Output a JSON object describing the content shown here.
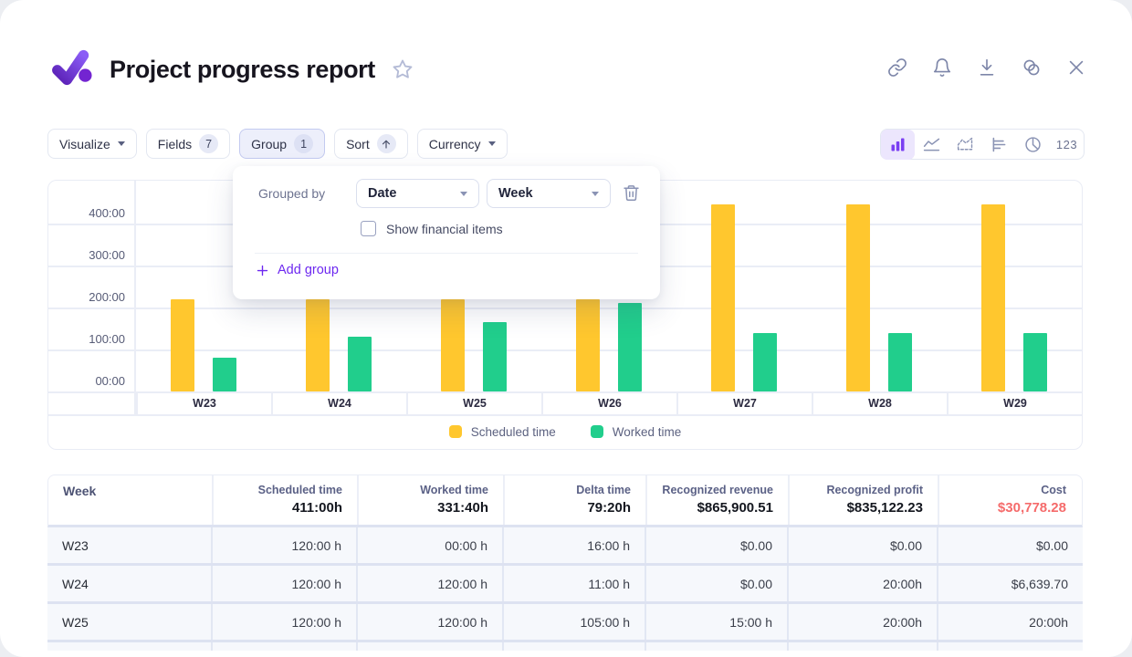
{
  "header": {
    "title": "Project progress report",
    "logo": "checkmark-logo",
    "favorite_icon": "star-icon",
    "action_icons": [
      "link-icon",
      "notifications-bell-icon",
      "download-icon",
      "merge-circles-icon",
      "close-icon"
    ]
  },
  "toolbar": {
    "visualize": {
      "label": "Visualize"
    },
    "fields": {
      "label": "Fields",
      "badge": "7"
    },
    "group": {
      "label": "Group",
      "badge": "1",
      "active": true
    },
    "sort": {
      "label": "Sort",
      "icon": "arrow-up"
    },
    "currency": {
      "label": "Currency"
    },
    "view_switcher": {
      "options": [
        "bar-chart",
        "line-chart",
        "area-chart",
        "horizontal-bar-chart",
        "pie-chart",
        "numbers"
      ],
      "active": "bar-chart",
      "numbers_label": "123"
    }
  },
  "group_panel": {
    "grouped_by_label": "Grouped by",
    "date_field": {
      "value": "Date"
    },
    "bucket_field": {
      "value": "Week"
    },
    "delete_icon": "trash-icon",
    "checkbox": {
      "label": "Show financial items",
      "checked": false
    },
    "add_group_label": "Add group"
  },
  "chart_data": {
    "type": "bar",
    "categories": [
      "W23",
      "W24",
      "W25",
      "W26",
      "W27",
      "W28",
      "W29"
    ],
    "series": [
      {
        "name": "Scheduled time",
        "color": "#FFC72E",
        "values": [
          220,
          220,
          220,
          220,
          445,
          445,
          445
        ]
      },
      {
        "name": "Worked time",
        "color": "#21CE8C",
        "values": [
          80,
          130,
          165,
          210,
          140,
          140,
          140
        ]
      }
    ],
    "y_ticks": [
      {
        "label": "00:00",
        "value": 0
      },
      {
        "label": "100:00",
        "value": 100
      },
      {
        "label": "200:00",
        "value": 200
      },
      {
        "label": "300:00",
        "value": 300
      },
      {
        "label": "400:00",
        "value": 400
      }
    ],
    "ylim": [
      0,
      500
    ],
    "grid": true,
    "legend_position": "bottom"
  },
  "table": {
    "columns": [
      {
        "label": "Week",
        "total": ""
      },
      {
        "label": "Scheduled time",
        "total": "411:00h"
      },
      {
        "label": "Worked time",
        "total": "331:40h"
      },
      {
        "label": "Delta time",
        "total": "79:20h"
      },
      {
        "label": "Recognized revenue",
        "total": "$865,900.51"
      },
      {
        "label": "Recognized profit",
        "total": "$835,122.23"
      },
      {
        "label": "Cost",
        "total": "$30,778.28",
        "total_color": "#F56B6B"
      }
    ],
    "rows": [
      [
        "W23",
        "120:00 h",
        "00:00 h",
        "16:00 h",
        "$0.00",
        "$0.00",
        "$0.00"
      ],
      [
        "W24",
        "120:00 h",
        "120:00 h",
        "11:00 h",
        "$0.00",
        "20:00h",
        "$6,639.70"
      ],
      [
        "W25",
        "120:00 h",
        "120:00 h",
        "105:00 h",
        "15:00 h",
        "20:00h",
        "20:00h"
      ]
    ],
    "partial_row_visible": true
  },
  "colors": {
    "accent_purple": "#6D28F0",
    "scheduled_yellow": "#FFC72E",
    "worked_green": "#21CE8C",
    "cost_red": "#F56B6B",
    "active_view_icon": "#7A3FF2"
  }
}
